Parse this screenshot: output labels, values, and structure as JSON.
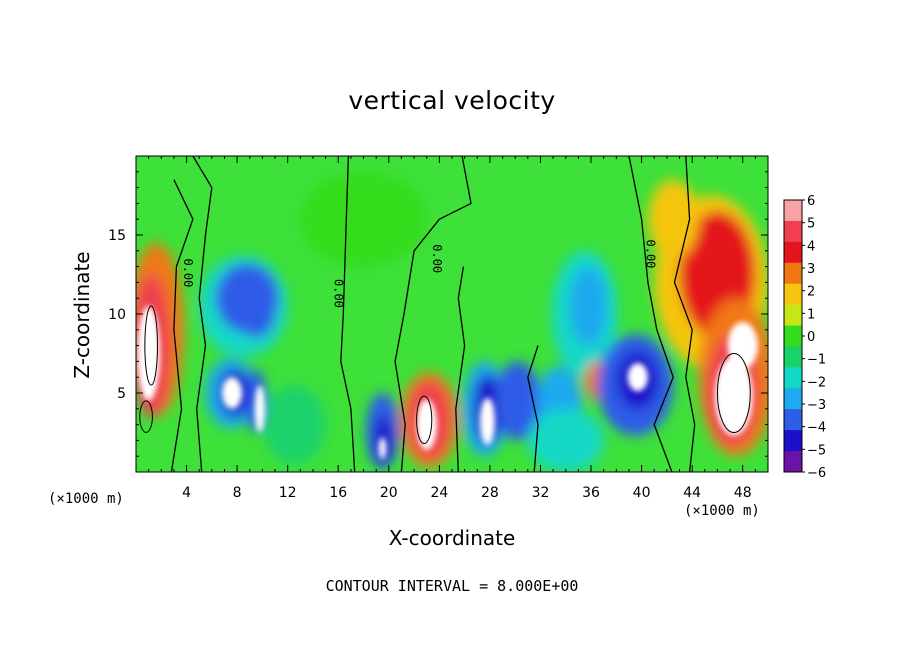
{
  "chart_data": {
    "type": "heatmap",
    "title": "vertical velocity",
    "xlabel": "X-coordinate",
    "ylabel": "Z-coordinate",
    "x_unit_label": "(×1000 m)",
    "xlim": [
      0,
      50
    ],
    "ylim": [
      0,
      20
    ],
    "x_ticks": [
      "4",
      "8",
      "12",
      "16",
      "20",
      "24",
      "28",
      "32",
      "36",
      "40",
      "44",
      "48"
    ],
    "y_ticks": [
      "5",
      "10",
      "15"
    ],
    "colorbar": {
      "ticks": [
        "6",
        "5",
        "4",
        "3",
        "2",
        "1",
        "0",
        "−1",
        "−2",
        "−3",
        "−4",
        "−5",
        "−6"
      ],
      "range": [
        -6,
        6
      ],
      "colors": [
        "#f7a3a3",
        "#ef3f50",
        "#e4141c",
        "#f07814",
        "#f5c510",
        "#c6e618",
        "#36dc1e",
        "#1ad26a",
        "#12d8c6",
        "#1fa9f0",
        "#2f5ce8",
        "#1c10c8",
        "#6c12a8"
      ]
    },
    "contour_labels": [
      "0.00",
      "0.00",
      "0.00",
      "0.00"
    ],
    "contour_interval": "CONTOUR INTERVAL = 8.000E+00",
    "features": [
      {
        "kind": "updraft",
        "x": 1.5,
        "z": 9,
        "value": 6
      },
      {
        "kind": "downdraft",
        "x": 8.5,
        "z": 11,
        "value": -4
      },
      {
        "kind": "downdraft",
        "x": 7.5,
        "z": 5,
        "value": -6
      },
      {
        "kind": "downdraft",
        "x": 19.5,
        "z": 2,
        "value": -6
      },
      {
        "kind": "updraft",
        "x": 23,
        "z": 3,
        "value": 6
      },
      {
        "kind": "downdraft",
        "x": 27.5,
        "z": 4,
        "value": -6
      },
      {
        "kind": "downdraft",
        "x": 30,
        "z": 4.5,
        "value": -4
      },
      {
        "kind": "downdraft",
        "x": 35.5,
        "z": 10,
        "value": -3
      },
      {
        "kind": "updraft",
        "x": 36.5,
        "z": 5.5,
        "value": 3
      },
      {
        "kind": "downdraft",
        "x": 39.5,
        "z": 5.5,
        "value": -6
      },
      {
        "kind": "updraft",
        "x": 45.5,
        "z": 12,
        "value": 5
      },
      {
        "kind": "updraft",
        "x": 47.5,
        "z": 5,
        "value": 6
      }
    ]
  },
  "footer_text": "CONTOUR INTERVAL = 8.000E+00"
}
